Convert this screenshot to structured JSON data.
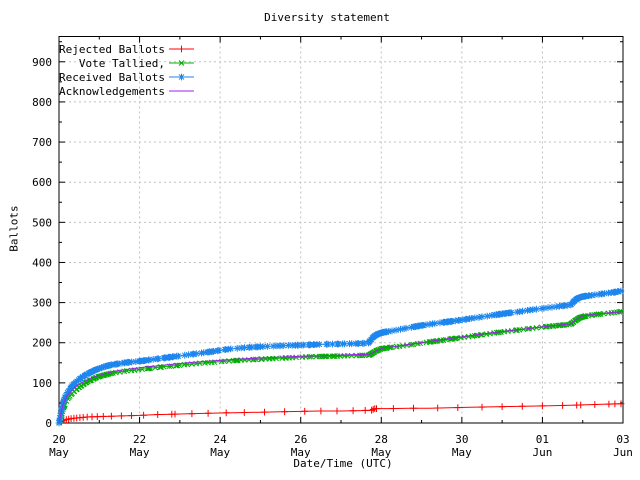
{
  "chart_data": {
    "type": "line",
    "title": "Diversity statement",
    "xlabel": "Date/Time (UTC)",
    "ylabel": "Ballots",
    "grid": true,
    "grid_color": "#c0c0c0",
    "background_color": "#ffffff",
    "border_color": "#000000",
    "x_axis": {
      "range_days": [
        0,
        14
      ],
      "minor_step_days": 1,
      "ticks": [
        {
          "day": 0,
          "top": "20",
          "bottom": "May"
        },
        {
          "day": 2,
          "top": "22",
          "bottom": "May"
        },
        {
          "day": 4,
          "top": "24",
          "bottom": "May"
        },
        {
          "day": 6,
          "top": "26",
          "bottom": "May"
        },
        {
          "day": 8,
          "top": "28",
          "bottom": "May"
        },
        {
          "day": 10,
          "top": "30",
          "bottom": "May"
        },
        {
          "day": 12,
          "top": "01",
          "bottom": "Jun"
        },
        {
          "day": 14,
          "top": "03",
          "bottom": "Jun"
        }
      ]
    },
    "y_axis": {
      "min": 0,
      "top_value": 963,
      "major_step": 100,
      "minor_step": 50,
      "major_labels": [
        "0",
        "100",
        "200",
        "300",
        "400",
        "500",
        "600",
        "700",
        "800",
        "900"
      ]
    },
    "legend_position": "top-left",
    "series": [
      {
        "name": "Rejected Ballots",
        "color": "#ff0000",
        "marker": "plus",
        "points": [
          [
            0,
            0
          ],
          [
            0.05,
            3
          ],
          [
            0.1,
            6
          ],
          [
            0.2,
            9
          ],
          [
            0.3,
            11
          ],
          [
            0.5,
            13
          ],
          [
            0.7,
            15
          ],
          [
            1,
            16
          ],
          [
            1.3,
            17
          ],
          [
            1.7,
            18
          ],
          [
            2,
            19
          ],
          [
            2.4,
            21
          ],
          [
            2.8,
            22
          ],
          [
            3.2,
            23
          ],
          [
            3.6,
            24
          ],
          [
            4,
            25
          ],
          [
            4.5,
            26
          ],
          [
            5,
            27
          ],
          [
            5.5,
            28
          ],
          [
            6,
            29
          ],
          [
            6.5,
            30
          ],
          [
            7,
            30
          ],
          [
            7.5,
            31
          ],
          [
            7.78,
            32
          ],
          [
            7.82,
            36
          ],
          [
            8.2,
            36
          ],
          [
            8.7,
            37
          ],
          [
            9.2,
            37
          ],
          [
            9.7,
            38
          ],
          [
            10.2,
            39
          ],
          [
            10.7,
            40
          ],
          [
            11.2,
            41
          ],
          [
            11.7,
            42
          ],
          [
            12.2,
            43
          ],
          [
            12.7,
            44
          ],
          [
            13,
            45
          ],
          [
            13.3,
            46
          ],
          [
            13.6,
            47
          ],
          [
            14,
            48
          ]
        ],
        "marker_times": [
          0.06,
          0.12,
          0.18,
          0.24,
          0.3,
          0.37,
          0.44,
          0.52,
          0.6,
          0.7,
          0.82,
          0.95,
          1.1,
          1.3,
          1.55,
          1.8,
          2.1,
          2.45,
          2.8,
          2.88,
          3.3,
          3.7,
          4.15,
          4.6,
          5.1,
          5.6,
          6.1,
          6.5,
          6.9,
          7.3,
          7.6,
          7.76,
          7.8,
          7.84,
          7.88,
          8.3,
          8.8,
          9.4,
          9.9,
          10.5,
          11.0,
          11.5,
          12.0,
          12.5,
          12.85,
          12.95,
          13.3,
          13.65,
          13.8,
          13.95
        ]
      },
      {
        "name": "Vote Tallied,",
        "color": "#00b000",
        "marker": "cross",
        "points": [
          [
            0,
            0
          ],
          [
            0.03,
            8
          ],
          [
            0.06,
            20
          ],
          [
            0.1,
            35
          ],
          [
            0.15,
            48
          ],
          [
            0.2,
            57
          ],
          [
            0.25,
            65
          ],
          [
            0.3,
            71
          ],
          [
            0.4,
            81
          ],
          [
            0.5,
            89
          ],
          [
            0.6,
            96
          ],
          [
            0.7,
            102
          ],
          [
            0.8,
            107
          ],
          [
            0.9,
            112
          ],
          [
            1,
            116
          ],
          [
            1.15,
            120
          ],
          [
            1.3,
            124
          ],
          [
            1.5,
            127
          ],
          [
            1.7,
            130
          ],
          [
            2,
            133
          ],
          [
            2.3,
            137
          ],
          [
            2.6,
            140
          ],
          [
            2.9,
            143
          ],
          [
            3.2,
            146
          ],
          [
            3.5,
            149
          ],
          [
            3.8,
            151
          ],
          [
            4,
            153
          ],
          [
            4.3,
            155
          ],
          [
            4.6,
            157
          ],
          [
            5,
            159
          ],
          [
            5.4,
            161
          ],
          [
            5.8,
            163
          ],
          [
            6.2,
            165
          ],
          [
            6.6,
            166
          ],
          [
            7,
            167
          ],
          [
            7.4,
            168
          ],
          [
            7.7,
            169
          ],
          [
            7.78,
            174
          ],
          [
            7.88,
            180
          ],
          [
            8,
            185
          ],
          [
            8.2,
            188
          ],
          [
            8.6,
            193
          ],
          [
            9,
            199
          ],
          [
            9.5,
            206
          ],
          [
            10,
            213
          ],
          [
            10.5,
            220
          ],
          [
            11,
            227
          ],
          [
            11.5,
            233
          ],
          [
            12,
            239
          ],
          [
            12.4,
            243
          ],
          [
            12.7,
            246
          ],
          [
            12.8,
            254
          ],
          [
            12.92,
            262
          ],
          [
            13.05,
            266
          ],
          [
            13.3,
            270
          ],
          [
            13.6,
            273
          ],
          [
            14,
            278
          ]
        ],
        "marker_segments": [
          [
            0,
            0.15,
            0.012
          ],
          [
            0.15,
            1.3,
            0.03
          ],
          [
            1.3,
            7.68,
            0.1
          ],
          [
            7.68,
            8.1,
            0.02
          ],
          [
            8.1,
            12.72,
            0.09
          ],
          [
            12.72,
            13.05,
            0.02
          ],
          [
            13.05,
            13.98,
            0.08
          ]
        ]
      },
      {
        "name": "Received Ballots",
        "color": "#1c86ee",
        "marker": "asterisk",
        "points": [
          [
            0,
            0
          ],
          [
            0.03,
            15
          ],
          [
            0.06,
            32
          ],
          [
            0.1,
            50
          ],
          [
            0.15,
            64
          ],
          [
            0.2,
            74
          ],
          [
            0.25,
            82
          ],
          [
            0.3,
            89
          ],
          [
            0.4,
            100
          ],
          [
            0.5,
            109
          ],
          [
            0.6,
            116
          ],
          [
            0.7,
            122
          ],
          [
            0.8,
            127
          ],
          [
            0.9,
            132
          ],
          [
            1,
            136
          ],
          [
            1.15,
            141
          ],
          [
            1.3,
            145
          ],
          [
            1.5,
            148
          ],
          [
            1.7,
            151
          ],
          [
            2,
            154
          ],
          [
            2.3,
            158
          ],
          [
            2.6,
            162
          ],
          [
            2.9,
            166
          ],
          [
            3.2,
            170
          ],
          [
            3.5,
            174
          ],
          [
            3.8,
            178
          ],
          [
            4,
            181
          ],
          [
            4.2,
            184
          ],
          [
            4.5,
            187
          ],
          [
            4.8,
            189
          ],
          [
            5.2,
            191
          ],
          [
            5.6,
            193
          ],
          [
            6,
            194
          ],
          [
            6.5,
            196
          ],
          [
            7,
            197
          ],
          [
            7.4,
            198
          ],
          [
            7.68,
            199
          ],
          [
            7.74,
            207
          ],
          [
            7.82,
            216
          ],
          [
            7.92,
            222
          ],
          [
            8.05,
            226
          ],
          [
            8.3,
            230
          ],
          [
            8.6,
            236
          ],
          [
            9,
            243
          ],
          [
            9.4,
            249
          ],
          [
            9.8,
            254
          ],
          [
            10.2,
            260
          ],
          [
            10.6,
            266
          ],
          [
            11,
            272
          ],
          [
            11.4,
            277
          ],
          [
            11.8,
            283
          ],
          [
            12.2,
            288
          ],
          [
            12.5,
            292
          ],
          [
            12.7,
            294
          ],
          [
            12.78,
            303
          ],
          [
            12.88,
            311
          ],
          [
            13,
            315
          ],
          [
            13.2,
            318
          ],
          [
            13.5,
            322
          ],
          [
            13.8,
            326
          ],
          [
            14,
            330
          ]
        ],
        "marker_segments": [
          [
            0,
            0.15,
            0.012
          ],
          [
            0.15,
            1.3,
            0.03
          ],
          [
            1.3,
            7.68,
            0.1
          ],
          [
            7.68,
            8.1,
            0.02
          ],
          [
            8.1,
            12.72,
            0.09
          ],
          [
            12.72,
            13.05,
            0.02
          ],
          [
            13.05,
            13.98,
            0.08
          ]
        ]
      },
      {
        "name": "Acknowledgements",
        "color": "#a020f0",
        "marker": "none",
        "points": [
          [
            0,
            0
          ],
          [
            0.05,
            25
          ],
          [
            0.1,
            45
          ],
          [
            0.15,
            58
          ],
          [
            0.2,
            67
          ],
          [
            0.3,
            79
          ],
          [
            0.4,
            89
          ],
          [
            0.5,
            96
          ],
          [
            0.65,
            105
          ],
          [
            0.8,
            112
          ],
          [
            1,
            119
          ],
          [
            1.25,
            126
          ],
          [
            1.5,
            131
          ],
          [
            1.8,
            135
          ],
          [
            2.1,
            139
          ],
          [
            2.5,
            143
          ],
          [
            2.9,
            147
          ],
          [
            3.3,
            151
          ],
          [
            3.7,
            154
          ],
          [
            4,
            156
          ],
          [
            4.4,
            159
          ],
          [
            4.8,
            161
          ],
          [
            5.2,
            163
          ],
          [
            5.7,
            165
          ],
          [
            6.2,
            167
          ],
          [
            6.7,
            168
          ],
          [
            7.2,
            170
          ],
          [
            7.7,
            171
          ],
          [
            7.8,
            176
          ],
          [
            7.9,
            182
          ],
          [
            8.05,
            187
          ],
          [
            8.3,
            190
          ],
          [
            8.7,
            196
          ],
          [
            9.1,
            202
          ],
          [
            9.6,
            209
          ],
          [
            10.1,
            216
          ],
          [
            10.6,
            223
          ],
          [
            11.1,
            229
          ],
          [
            11.6,
            235
          ],
          [
            12,
            240
          ],
          [
            12.4,
            244
          ],
          [
            12.7,
            247
          ],
          [
            12.8,
            256
          ],
          [
            12.92,
            264
          ],
          [
            13.05,
            268
          ],
          [
            13.3,
            271
          ],
          [
            13.6,
            274
          ],
          [
            14,
            277
          ]
        ]
      }
    ]
  }
}
